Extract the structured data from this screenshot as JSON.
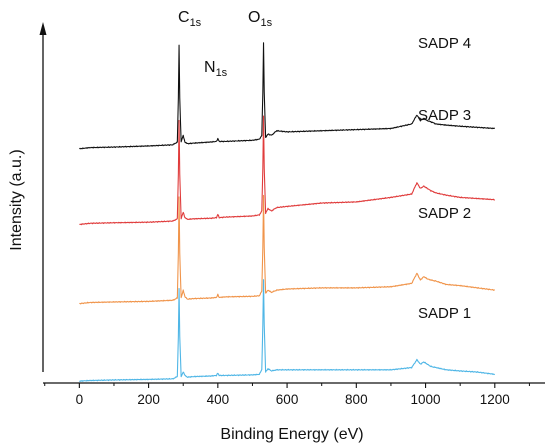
{
  "chart_data": {
    "type": "line",
    "xlabel": "Binding Energy (eV)",
    "ylabel": "Intensity (a.u.)",
    "xlim": [
      -105,
      1345
    ],
    "x_ticks": [
      0,
      200,
      400,
      600,
      800,
      1000,
      1200
    ],
    "y_ticks_shown": false,
    "grid": false,
    "legend": "labels placed next to each curve on the right",
    "peak_labels": [
      {
        "main": "C",
        "sub": "1s",
        "x": 288
      },
      {
        "main": "N",
        "sub": "1s",
        "x": 400
      },
      {
        "main": "O",
        "sub": "1s",
        "x": 532
      }
    ],
    "series": [
      {
        "name": "SADP 4",
        "color": "#111111",
        "base": 0.855,
        "x": [
          0,
          30,
          100,
          200,
          270,
          283,
          286,
          288,
          290,
          294,
          300,
          305,
          312,
          330,
          380,
          396,
          400,
          404,
          420,
          500,
          520,
          527,
          530,
          532,
          534,
          538,
          545,
          555,
          570,
          600,
          700,
          800,
          900,
          960,
          975,
          985,
          995,
          1005,
          1015,
          1030,
          1060,
          1100,
          1150,
          1200
        ],
        "y": [
          0.0,
          0.01,
          0.015,
          0.025,
          0.035,
          0.06,
          0.45,
          0.92,
          0.45,
          0.06,
          0.12,
          0.06,
          0.045,
          0.05,
          0.06,
          0.065,
          0.09,
          0.065,
          0.065,
          0.075,
          0.085,
          0.12,
          0.5,
          0.94,
          0.5,
          0.1,
          0.13,
          0.12,
          0.16,
          0.15,
          0.16,
          0.17,
          0.18,
          0.22,
          0.3,
          0.25,
          0.27,
          0.25,
          0.24,
          0.22,
          0.21,
          0.2,
          0.19,
          0.18
        ]
      },
      {
        "name": "SADP 3",
        "color": "#e03c3c",
        "base": 0.64,
        "x": [
          0,
          30,
          100,
          200,
          270,
          283,
          286,
          288,
          290,
          294,
          300,
          305,
          312,
          330,
          380,
          396,
          400,
          404,
          420,
          500,
          520,
          527,
          530,
          532,
          534,
          538,
          545,
          555,
          570,
          600,
          700,
          800,
          900,
          960,
          975,
          985,
          995,
          1005,
          1015,
          1030,
          1060,
          1100,
          1150,
          1200
        ],
        "y": [
          0.0,
          0.01,
          0.015,
          0.02,
          0.03,
          0.05,
          0.45,
          0.92,
          0.45,
          0.05,
          0.11,
          0.06,
          0.045,
          0.05,
          0.055,
          0.06,
          0.09,
          0.06,
          0.065,
          0.075,
          0.085,
          0.12,
          0.5,
          0.96,
          0.5,
          0.1,
          0.14,
          0.12,
          0.15,
          0.16,
          0.19,
          0.2,
          0.24,
          0.27,
          0.37,
          0.32,
          0.34,
          0.32,
          0.3,
          0.28,
          0.26,
          0.24,
          0.23,
          0.22
        ]
      },
      {
        "name": "SADP 2",
        "color": "#f0944a",
        "base": 0.415,
        "x": [
          0,
          30,
          100,
          200,
          270,
          283,
          286,
          288,
          290,
          294,
          300,
          305,
          312,
          330,
          380,
          396,
          400,
          404,
          420,
          500,
          520,
          527,
          530,
          532,
          534,
          538,
          545,
          555,
          570,
          600,
          700,
          800,
          900,
          960,
          975,
          985,
          995,
          1005,
          1015,
          1030,
          1060,
          1100,
          1150,
          1200
        ],
        "y": [
          0.0,
          0.01,
          0.015,
          0.02,
          0.03,
          0.05,
          0.45,
          0.95,
          0.45,
          0.05,
          0.12,
          0.06,
          0.04,
          0.045,
          0.05,
          0.055,
          0.08,
          0.055,
          0.06,
          0.065,
          0.07,
          0.11,
          0.5,
          0.96,
          0.5,
          0.09,
          0.12,
          0.1,
          0.12,
          0.13,
          0.14,
          0.14,
          0.15,
          0.18,
          0.27,
          0.21,
          0.24,
          0.22,
          0.21,
          0.2,
          0.17,
          0.16,
          0.14,
          0.12
        ]
      },
      {
        "name": "SADP 1",
        "color": "#4fb6e6",
        "base": 0.195,
        "x": [
          0,
          30,
          100,
          200,
          270,
          283,
          286,
          288,
          290,
          294,
          300,
          305,
          312,
          330,
          380,
          396,
          400,
          404,
          420,
          500,
          520,
          527,
          530,
          532,
          534,
          538,
          545,
          555,
          570,
          600,
          700,
          800,
          900,
          960,
          975,
          985,
          995,
          1005,
          1015,
          1030,
          1060,
          1100,
          1150,
          1200
        ],
        "y": [
          0.0,
          0.005,
          0.01,
          0.015,
          0.02,
          0.04,
          0.4,
          0.82,
          0.4,
          0.04,
          0.08,
          0.05,
          0.035,
          0.04,
          0.045,
          0.05,
          0.07,
          0.05,
          0.05,
          0.055,
          0.06,
          0.1,
          0.5,
          0.9,
          0.5,
          0.08,
          0.11,
          0.09,
          0.1,
          0.1,
          0.1,
          0.1,
          0.1,
          0.12,
          0.19,
          0.15,
          0.17,
          0.15,
          0.13,
          0.12,
          0.1,
          0.09,
          0.08,
          0.06
        ]
      }
    ]
  }
}
